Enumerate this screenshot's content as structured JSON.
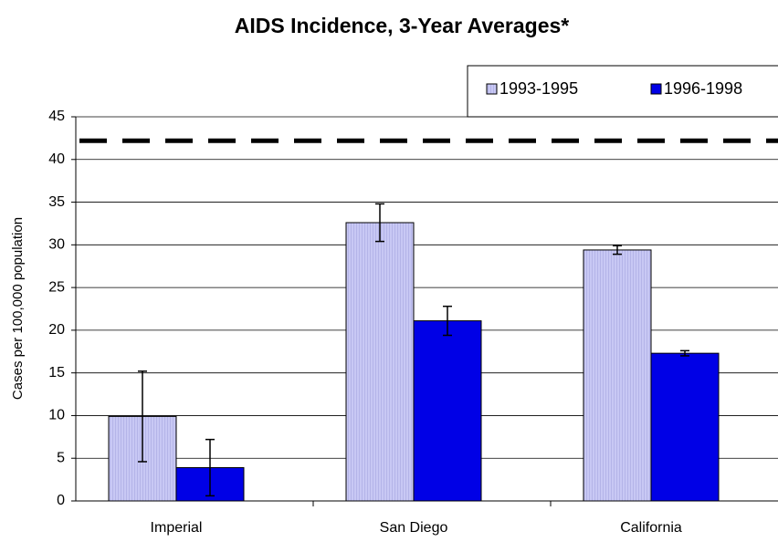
{
  "chart_data": {
    "type": "bar",
    "title": "AIDS Incidence, 3-Year Averages*",
    "y_label": "Cases per 100,000 population",
    "categories": [
      "Imperial",
      "San Diego",
      "California"
    ],
    "series": [
      {
        "name": "1993-1995",
        "color": "#c8c8f4",
        "values": [
          9.9,
          32.6,
          29.4
        ],
        "errors": [
          5.3,
          2.2,
          0.5
        ]
      },
      {
        "name": "1996-1998",
        "color": "#0000e6",
        "values": [
          3.9,
          21.1,
          17.3
        ],
        "errors": [
          3.3,
          1.7,
          0.3
        ]
      }
    ],
    "reference_line": 42.2,
    "ylim": [
      0,
      45
    ],
    "yticks": [
      0,
      5,
      10,
      15,
      20,
      25,
      30,
      35,
      40,
      45
    ],
    "grid": true
  }
}
